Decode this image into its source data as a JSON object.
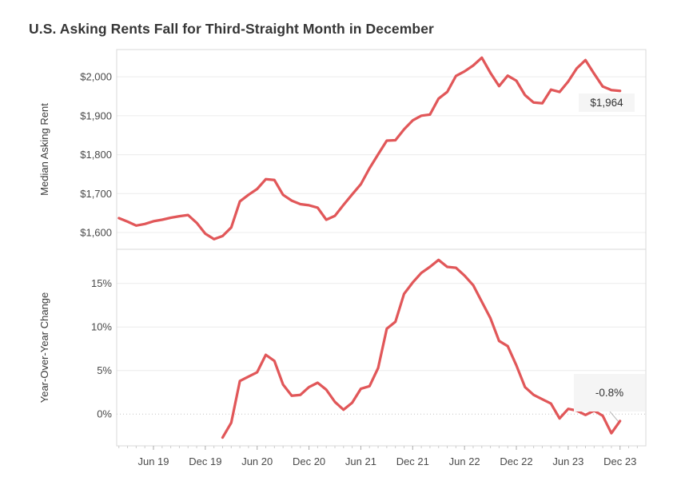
{
  "title": "U.S. Asking Rents Fall for Third-Straight Month in December",
  "colors": {
    "line": "#e15759",
    "grid": "#ececec",
    "panel_border": "#d9d9d9",
    "zero_line": "#c4c4c4",
    "tick_minor": "#cccccc",
    "tick_major": "#aaaaaa",
    "axis_text": "#4a4a4a",
    "axis_title_text": "#3a3a3a",
    "leader": "#b9b9b9",
    "annotation_bg": "#f5f5f5",
    "annotation_text": "#333333"
  },
  "chart_data": {
    "type": "line",
    "title": "U.S. Asking Rents Fall for Third-Straight Month in December",
    "x_start_month": "Feb 2019",
    "x_end_month": "Dec 2023",
    "x_frequency": "monthly",
    "legend": "none",
    "grid": "horizontal-only",
    "xticks": [
      {
        "index": 4,
        "label": "Jun 19"
      },
      {
        "index": 10,
        "label": "Dec 19"
      },
      {
        "index": 16,
        "label": "Jun 20"
      },
      {
        "index": 22,
        "label": "Dec 20"
      },
      {
        "index": 28,
        "label": "Jun 21"
      },
      {
        "index": 34,
        "label": "Dec 21"
      },
      {
        "index": 40,
        "label": "Jun 22"
      },
      {
        "index": 46,
        "label": "Dec 22"
      },
      {
        "index": 52,
        "label": "Jun 23"
      },
      {
        "index": 58,
        "label": "Dec 23"
      }
    ],
    "panels": [
      {
        "name": "median-asking-rent",
        "ylabel": "Median Asking Rent",
        "ylim": [
          1557,
          2070
        ],
        "yticks": [
          {
            "value": 1600,
            "label": "$1,600"
          },
          {
            "value": 1700,
            "label": "$1,700"
          },
          {
            "value": 1800,
            "label": "$1,800"
          },
          {
            "value": 1900,
            "label": "$1,900"
          },
          {
            "value": 2000,
            "label": "$2,000"
          }
        ],
        "series": {
          "name": "Median Asking Rent",
          "start_index": 0,
          "values": [
            1637,
            1628,
            1618,
            1622,
            1629,
            1633,
            1638,
            1642,
            1645,
            1625,
            1597,
            1583,
            1591,
            1613,
            1680,
            1697,
            1712,
            1737,
            1735,
            1697,
            1682,
            1673,
            1670,
            1664,
            1633,
            1643,
            1671,
            1698,
            1724,
            1765,
            1801,
            1836,
            1837,
            1865,
            1888,
            1900,
            1903,
            1944,
            1961,
            2002,
            2014,
            2029,
            2049,
            2010,
            1976,
            2003,
            1990,
            1953,
            1934,
            1932,
            1967,
            1961,
            1988,
            2022,
            2043,
            2008,
            1975,
            1966,
            1964
          ]
        },
        "annotation": {
          "label": "$1,964",
          "meaning": "Dec 2023 median asking rent"
        }
      },
      {
        "name": "year-over-year-change",
        "ylabel": "Year-Over-Year Change",
        "ylim": [
          -3.65,
          18.92
        ],
        "yticks": [
          {
            "value": 0,
            "label": "0%",
            "dotted": true
          },
          {
            "value": 5,
            "label": "5%"
          },
          {
            "value": 10,
            "label": "10%"
          },
          {
            "value": 15,
            "label": "15%"
          }
        ],
        "series": {
          "name": "Year-Over-Year Change (%)",
          "start_index": 12,
          "values": [
            -2.7,
            -1.0,
            3.8,
            4.3,
            4.8,
            6.8,
            6.1,
            3.4,
            2.1,
            2.2,
            3.1,
            3.6,
            2.8,
            1.4,
            0.5,
            1.3,
            2.9,
            3.2,
            5.3,
            9.8,
            10.6,
            13.8,
            15.1,
            16.2,
            16.9,
            17.7,
            16.9,
            16.8,
            15.9,
            14.8,
            12.9,
            11.0,
            8.4,
            7.8,
            5.6,
            3.1,
            2.2,
            1.7,
            1.2,
            -0.5,
            0.6,
            0.4,
            -0.1,
            0.4,
            -0.2,
            -2.2,
            -0.8
          ]
        },
        "annotation": {
          "label": "-0.8%",
          "meaning": "Dec 2023 year-over-year change"
        }
      }
    ]
  }
}
